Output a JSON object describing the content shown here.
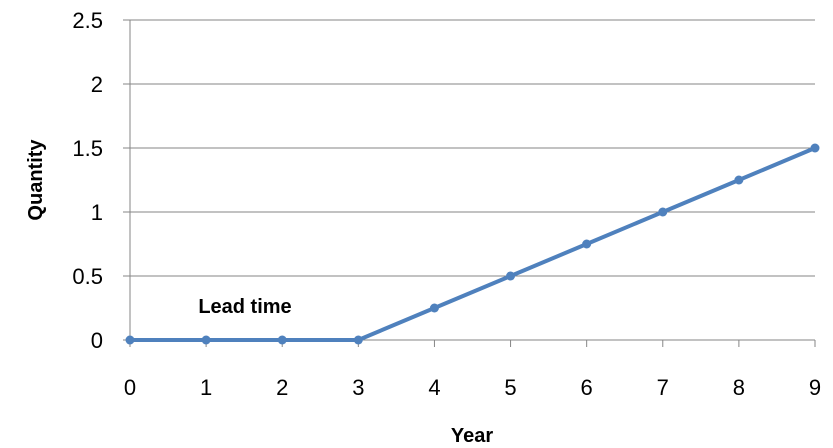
{
  "chart_data": {
    "type": "line",
    "x": [
      0,
      1,
      2,
      3,
      4,
      5,
      6,
      7,
      8,
      9
    ],
    "series": [
      {
        "values": [
          0,
          0,
          0,
          0,
          0.25,
          0.5,
          0.75,
          1,
          1.25,
          1.5
        ],
        "color": "#4f81bd"
      }
    ],
    "xlabel": "Year",
    "ylabel": "Quantity",
    "xlim": [
      0,
      9
    ],
    "ylim": [
      0,
      2.5
    ],
    "x_ticks": [
      "0",
      "1",
      "2",
      "3",
      "4",
      "5",
      "6",
      "7",
      "8",
      "9"
    ],
    "y_ticks": [
      "0",
      "0.5",
      "1",
      "1.5",
      "2",
      "2.5"
    ],
    "grid": "horizontal",
    "legend": "none",
    "annotations": [
      {
        "text": "Lead time",
        "x": 2.5,
        "y": 0.25
      }
    ],
    "gridline_color": "#868686",
    "axis_color": "#868686"
  }
}
